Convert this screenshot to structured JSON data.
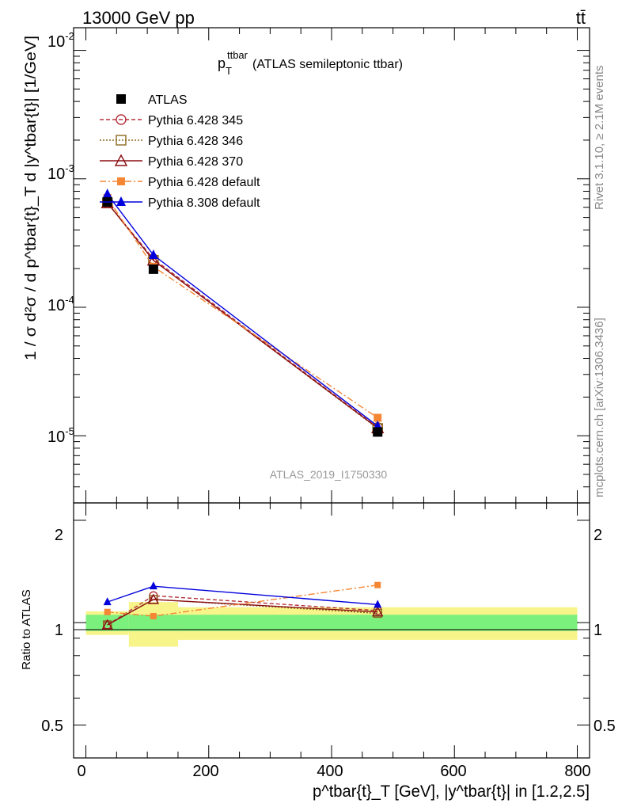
{
  "header": {
    "energy_label": "13000 GeV pp",
    "process_label": "tt̄"
  },
  "side_labels": {
    "rivet": "Rivet 3.1.10, ≥ 2.1M events",
    "source": "mcplots.cern.ch [arXiv:1306.3436]"
  },
  "watermark": "ATLAS_2019_I1750330",
  "main_title": {
    "p": "p",
    "sup": "ttbar",
    "sub": "T",
    "rest": "(ATLAS semileptonic ttbar)"
  },
  "y_label_main": "1 / σ d²σ / d p^tbar{t}_T d |y^tbar{t}| [1/GeV]",
  "y_label_ratio": "Ratio to ATLAS",
  "x_label": "p^tbar{t}_T [GeV], |y^tbar{t}| in [1.2,2.5]",
  "main_ticks": {
    "labels": [
      {
        "mant": "10",
        "exp": "-2"
      },
      {
        "mant": "10",
        "exp": "-3"
      },
      {
        "mant": "10",
        "exp": "-4"
      },
      {
        "mant": "10",
        "exp": "-5"
      }
    ]
  },
  "ratio_ticks": [
    "2",
    "1",
    "0.5"
  ],
  "x_ticks": [
    "0",
    "200",
    "400",
    "600",
    "800"
  ],
  "colors": {
    "atlas": "#000000",
    "p345": "#b5323a",
    "p346": "#8b6a1e",
    "p370": "#8b0f14",
    "p6def": "#f58634",
    "p8def": "#0000dd",
    "band_inner": "#7cf07c",
    "band_outer": "#f7f48a"
  },
  "chart_data": {
    "type": "line",
    "x_bins": [
      [
        0,
        70
      ],
      [
        70,
        150
      ],
      [
        150,
        800
      ]
    ],
    "x": [
      35,
      110,
      475
    ],
    "xlim": [
      -20,
      820
    ],
    "ylim_main": [
      3e-06,
      0.015
    ],
    "y_scale_main": "log",
    "ylim_ratio": [
      0.4,
      2.25
    ],
    "y_scale_ratio": "log",
    "grid": false,
    "legend_position": "top-left",
    "series": [
      {
        "name": "ATLAS",
        "key": "atlas",
        "style": "square",
        "values": [
          0.00066,
          0.000198,
          1.07e-05
        ],
        "band_inner": [
          0.055,
          0.055,
          0.055
        ],
        "band_outer": [
          0.08,
          0.15,
          0.11
        ]
      },
      {
        "name": "Pythia 6.428 345",
        "key": "p345",
        "style": "circle",
        "dash": "5,3",
        "values": [
          0.00065,
          0.000238,
          1.16e-05
        ]
      },
      {
        "name": "Pythia 6.428 346",
        "key": "p346",
        "style": "open-square",
        "dash": "2,2",
        "values": [
          0.00065,
          0.000232,
          1.14e-05
        ]
      },
      {
        "name": "Pythia 6.428 370",
        "key": "p370",
        "style": "triangle-open",
        "dash": "",
        "values": [
          0.00065,
          0.000232,
          1.15e-05
        ]
      },
      {
        "name": "Pythia 6.428 default",
        "key": "p6def",
        "style": "square-filled",
        "dash": "8,3,2,3",
        "values": [
          0.00071,
          0.000207,
          1.38e-05
        ]
      },
      {
        "name": "Pythia 8.308 default",
        "key": "p8def",
        "style": "triangle-filled",
        "dash": "",
        "values": [
          0.00076,
          0.000255,
          1.19e-05
        ]
      }
    ],
    "ratio": [
      {
        "key": "p345",
        "values": [
          0.985,
          1.2,
          1.085
        ]
      },
      {
        "key": "p346",
        "values": [
          0.985,
          1.17,
          1.065
        ]
      },
      {
        "key": "p370",
        "values": [
          0.985,
          1.17,
          1.075
        ]
      },
      {
        "key": "p6def",
        "values": [
          1.075,
          1.045,
          1.29
        ]
      },
      {
        "key": "p8def",
        "values": [
          1.15,
          1.28,
          1.13
        ]
      }
    ]
  }
}
